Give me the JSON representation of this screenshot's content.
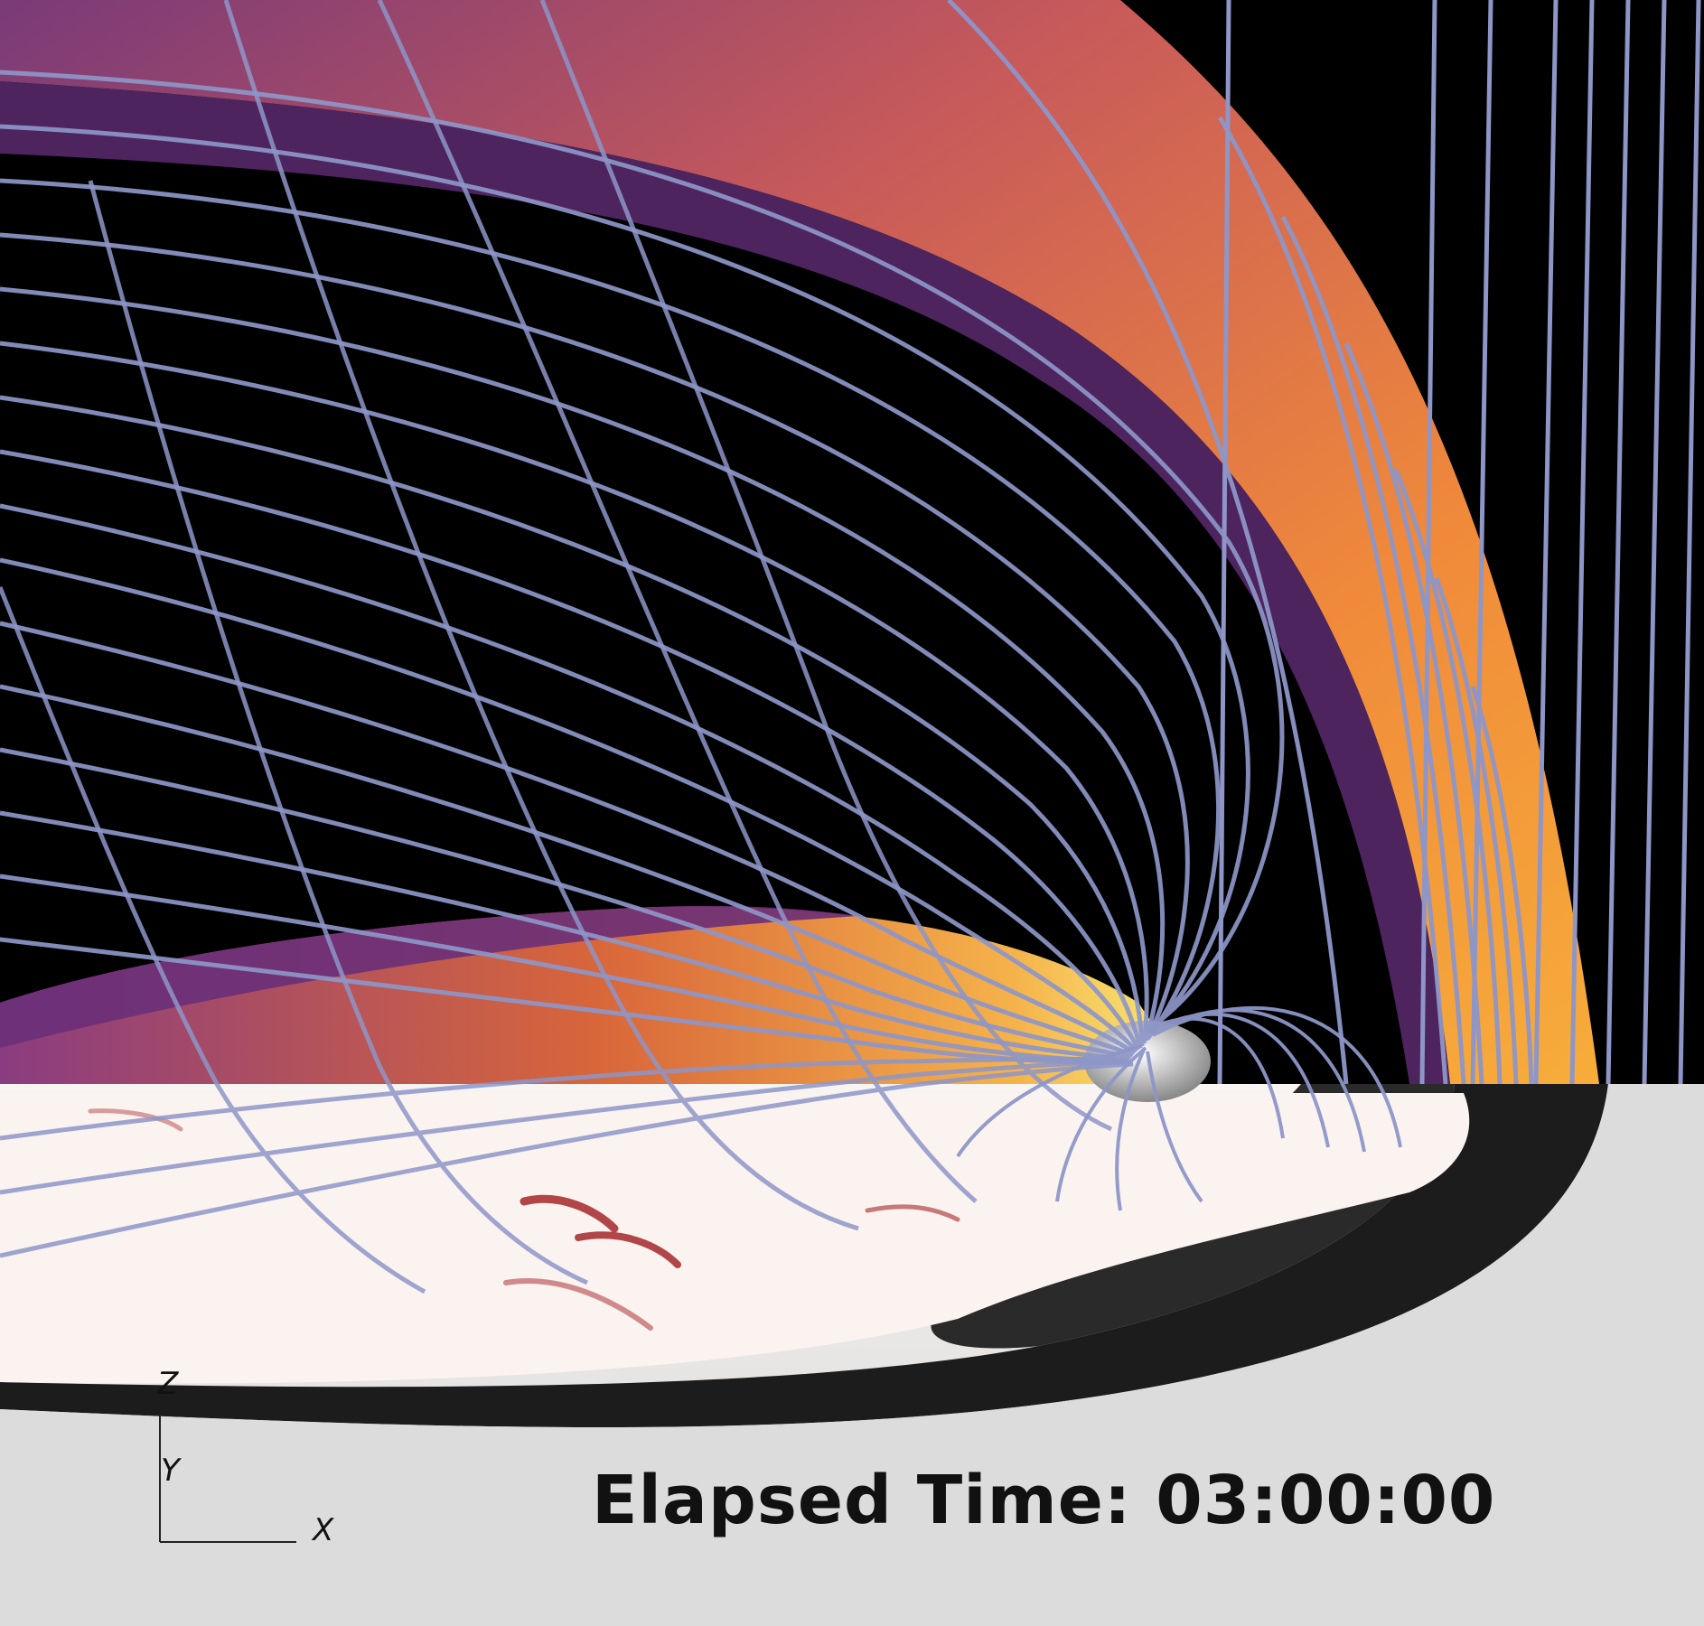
{
  "overlay": {
    "time_prefix": "Elapsed Time:",
    "time_value": "03:00:00"
  },
  "axes": {
    "z": "Z",
    "y": "Y",
    "x": "X"
  },
  "colors": {
    "background": "#000000",
    "field_lines": "#8e96c8",
    "magnetosheath_orange": "#f2993a",
    "magnetosheath_purple": "#5b2a6e",
    "equatorial_plane_light": "#e9e9e9",
    "equatorial_plane_dark": "#1c1c1c",
    "current_sheet_red": "#a3262a"
  }
}
